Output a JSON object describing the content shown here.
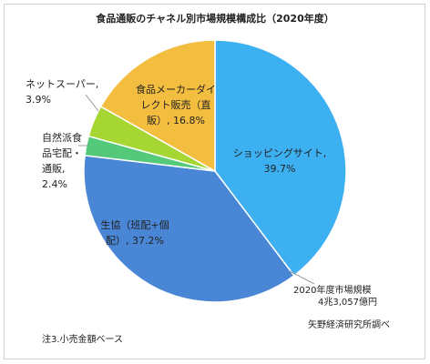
{
  "chart_data": {
    "type": "pie",
    "title": "食品通販のチャネル別市場規模構成比（2020年度）",
    "slices": [
      {
        "label": [
          "ショッピングサイト,",
          "39.7%"
        ],
        "value": 39.7,
        "color": "#3db0f2"
      },
      {
        "label": [
          "生協（班配+個",
          "配）, 37.2%"
        ],
        "value": 37.2,
        "color": "#4a86d6"
      },
      {
        "label": [
          "自然派食",
          "品宅配・",
          "通販,",
          "2.4%"
        ],
        "value": 2.4,
        "color": "#55c97a"
      },
      {
        "label": [
          "ネットスーパー,",
          "3.9%"
        ],
        "value": 3.9,
        "color": "#a6d631"
      },
      {
        "label": [
          "食品メーカーダイ",
          "レクト販売（直",
          "販）, 16.8%"
        ],
        "value": 16.8,
        "color": "#f3bd3f"
      }
    ]
  },
  "notes": {
    "market_size_line1": "2020年度市場規模",
    "market_size_line2": "4兆3,057億円",
    "source": "矢野経済研究所調べ",
    "footnote": "注3.小売金額ベース"
  }
}
